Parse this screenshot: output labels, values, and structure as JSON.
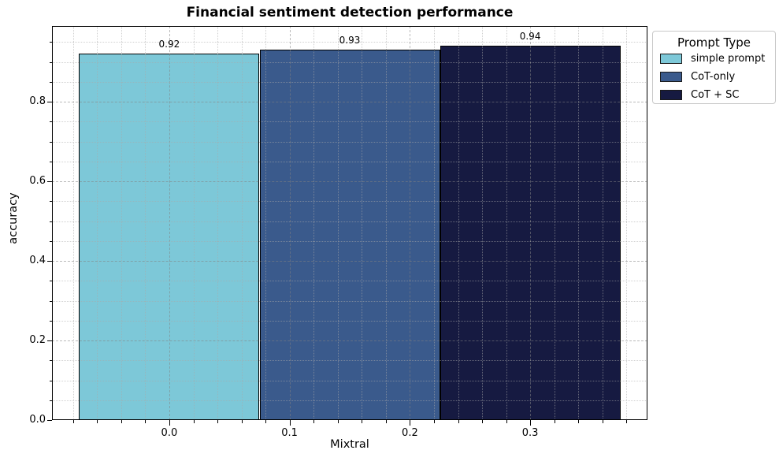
{
  "chart_data": {
    "type": "bar",
    "title": "Financial sentiment detection performance",
    "xlabel": "Mixtral",
    "ylabel": "accuracy",
    "categories": [
      "simple prompt",
      "CoT-only",
      "CoT + SC"
    ],
    "series": [
      {
        "name": "Mixtral",
        "values": [
          0.92,
          0.93,
          0.94
        ]
      }
    ],
    "values": [
      0.92,
      0.93,
      0.94
    ],
    "value_labels": [
      "0.92",
      "0.93",
      "0.94"
    ],
    "bar_centers": [
      0.0,
      0.15,
      0.3
    ],
    "bar_width": 0.15,
    "bar_colors": [
      "#7dc8d8",
      "#3a5a8c",
      "#161a41"
    ],
    "bar_edge_color": "#000000",
    "xlim": [
      -0.0975,
      0.3975
    ],
    "ylim": [
      0,
      0.99
    ],
    "x_major_ticks": [
      0.0,
      0.1,
      0.2,
      0.3
    ],
    "x_major_labels": [
      "0.0",
      "0.1",
      "0.2",
      "0.3"
    ],
    "x_minor_step": 0.02,
    "y_major_ticks": [
      0.0,
      0.2,
      0.4,
      0.6,
      0.8
    ],
    "y_major_labels": [
      "0.0",
      "0.2",
      "0.4",
      "0.6",
      "0.8"
    ],
    "y_minor_step": 0.05,
    "grid": true,
    "legend": {
      "title": "Prompt Type",
      "position": "outside-top-right",
      "entries": [
        {
          "label": "simple prompt",
          "color": "#7dc8d8"
        },
        {
          "label": "CoT-only",
          "color": "#3a5a8c"
        },
        {
          "label": "CoT + SC",
          "color": "#161a41"
        }
      ]
    },
    "colors": {
      "background": "#ffffff",
      "spine": "#000000",
      "grid_major": "#828282",
      "grid_minor": "#aaaaaa",
      "text": "#000000"
    }
  }
}
